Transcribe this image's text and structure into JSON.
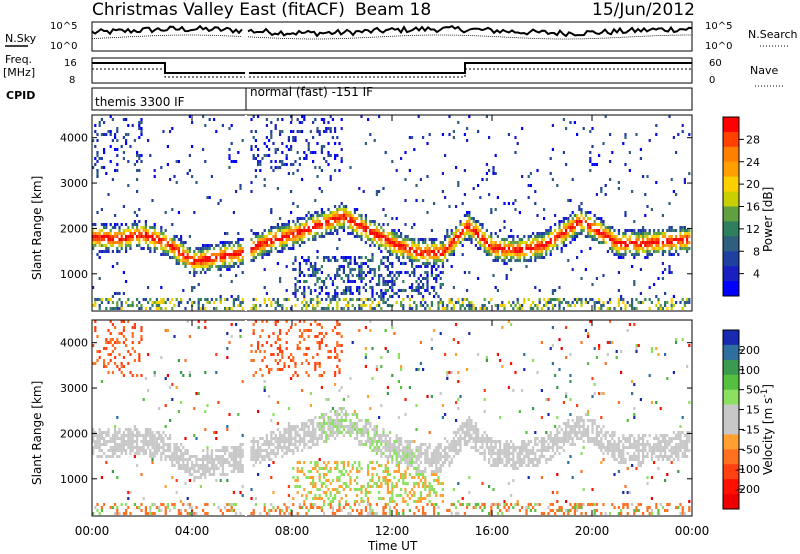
{
  "header": {
    "title": "Christmas Valley East (fitACF)",
    "beam": "Beam 18",
    "date": "15/Jun/2012"
  },
  "left_labels": {
    "nsky": "N.Sky",
    "freq_line1": "Freq.",
    "freq_line2": "[MHz]",
    "cpid": "CPID"
  },
  "right_labels": {
    "nsearch": "N.Search",
    "nave": "Nave"
  },
  "top_panels": {
    "noise_ticks": [
      "10^5",
      "10^0"
    ],
    "noise_right_ticks": [
      "10^5",
      "10^0"
    ],
    "freq_ticks": [
      "16",
      "8"
    ],
    "nave_ticks": [
      "60",
      "0"
    ],
    "cpid_labels": [
      "themis 3300 IF",
      "normal (fast) -151 IF"
    ]
  },
  "colorbars": {
    "power": {
      "label": "Power [dB]",
      "ticks": [
        "28",
        "24",
        "20",
        "16",
        "12",
        "8",
        "4"
      ],
      "colors": [
        "#ff0000",
        "#ff4000",
        "#ff8000",
        "#ffa000",
        "#ffd000",
        "#c8d000",
        "#60a040",
        "#2f7f5f",
        "#2f5f7f",
        "#2040a0",
        "#1a20c0",
        "#0000ff"
      ]
    },
    "velocity": {
      "label": "Velocity [m s^-1]",
      "ticks": [
        "200",
        "100",
        "50",
        "15",
        "-15",
        "-50",
        "-100",
        "-200"
      ],
      "colors": [
        "#1a2ab0",
        "#2e6fa0",
        "#3a9a50",
        "#55c040",
        "#8ce060",
        "#c8c8c8",
        "#c8c8c8",
        "#ffa030",
        "#ff7020",
        "#ff4010",
        "#ff1000",
        "#ee0000"
      ]
    }
  },
  "chart_data": [
    {
      "type": "heatmap",
      "name": "power",
      "ylabel": "Slant Range [km]",
      "xlabel": "",
      "ylim": [
        180,
        4500
      ],
      "xlim": [
        0,
        24
      ],
      "yticks": [
        "4000",
        "3000",
        "2000",
        "1000"
      ],
      "band_center_km": {
        "x": [
          0,
          1,
          2,
          3,
          4,
          5,
          6,
          7,
          8,
          9,
          10,
          11,
          12,
          13,
          14,
          15,
          16,
          17,
          18,
          19,
          19.5,
          20,
          21,
          22,
          23,
          24
        ],
        "y": [
          1850,
          1800,
          1900,
          1700,
          1300,
          1400,
          1500,
          1750,
          1900,
          2100,
          2300,
          2000,
          1700,
          1500,
          1500,
          2100,
          1600,
          1550,
          1650,
          2000,
          2200,
          2050,
          1700,
          1700,
          1750,
          1800
        ]
      }
    },
    {
      "type": "heatmap",
      "name": "velocity",
      "ylabel": "Slant Range [km]",
      "xlabel": "Time UT",
      "ylim": [
        180,
        4500
      ],
      "xlim": [
        0,
        24
      ],
      "yticks": [
        "4000",
        "3000",
        "2000",
        "1000"
      ],
      "xticks": [
        "00:00",
        "04:00",
        "08:00",
        "12:00",
        "16:00",
        "20:00",
        "00:00"
      ]
    }
  ]
}
